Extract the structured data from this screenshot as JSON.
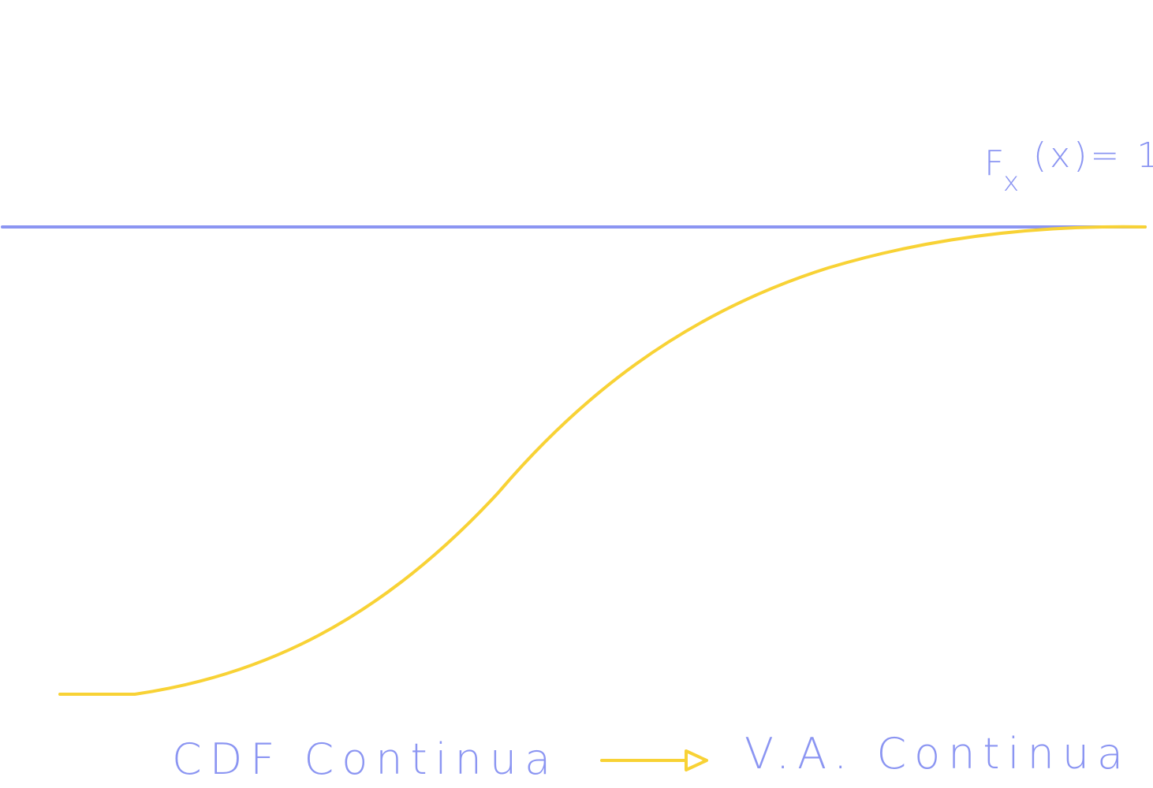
{
  "colors": {
    "background": "#ffffff",
    "accent_blue": "#8B95F2",
    "accent_yellow": "#F8D235"
  },
  "top_label": {
    "prefix": "F",
    "subscript": "x",
    "suffix": "(x)= 1"
  },
  "caption": {
    "left": "CDF Continua",
    "right": "V.A. Continua"
  },
  "arrow_icon": "right-arrow-icon"
}
